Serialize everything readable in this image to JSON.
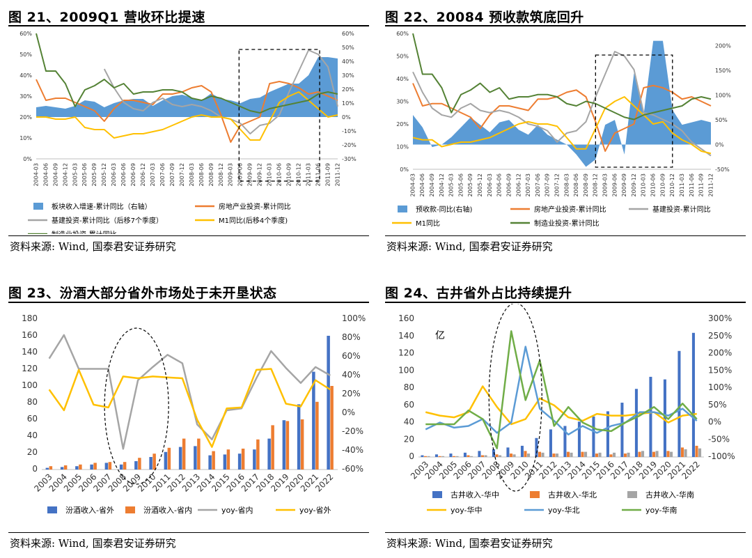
{
  "source_text": "资料来源: Wind, 国泰君安证券研究",
  "colors": {
    "blue": "#5B9BD5",
    "orange": "#ED7D31",
    "gray": "#A5A5A5",
    "yellow": "#FFC000",
    "green": "#548235",
    "darkblue": "#4472C4",
    "lightblue": "#5B9BD5",
    "green2": "#70AD47"
  },
  "chart_data": [
    {
      "id": "fig21",
      "title": "图 21、2009Q1 营收环比提速",
      "type": "area+line",
      "x": [
        "2004-03",
        "2004-06",
        "2004-09",
        "2004-12",
        "2005-03",
        "2005-06",
        "2005-09",
        "2005-12",
        "2006-03",
        "2006-06",
        "2006-09",
        "2006-12",
        "2007-03",
        "2007-06",
        "2007-09",
        "2007-12",
        "2008-03",
        "2008-06",
        "2008-09",
        "2008-12",
        "2009-03",
        "2009-06",
        "2009-09",
        "2009-12",
        "2010-03",
        "2010-06",
        "2010-09",
        "2010-12",
        "2011-03",
        "2011-06",
        "2011-09",
        "2011-12"
      ],
      "x_tick_labels": [
        "2004-03",
        "2004-06",
        "2004-09",
        "2004-12",
        "2005-03",
        "2005-06",
        "2005-09",
        "2005-12",
        "2006-03",
        "2006-06",
        "2006-09",
        "2006-12",
        "2007-03",
        "2007-06",
        "2007-09",
        "2007-12",
        "2008-03",
        "2008-06",
        "2008-09",
        "2008-12",
        "2009-03",
        "2009-06",
        "2009-09",
        "2009-12",
        "2010-03",
        "2010-06",
        "2010-09",
        "2010-12",
        "2011-03",
        "2011-06",
        "2011-09",
        "2011-12"
      ],
      "left_axis": {
        "min": 0,
        "max": 60,
        "ticks": [
          0,
          10,
          20,
          30,
          40,
          50,
          60
        ],
        "labels": [
          "0%",
          "10%",
          "20%",
          "30%",
          "40%",
          "50%",
          "60%"
        ]
      },
      "right_axis": {
        "min": -30,
        "max": 60,
        "ticks": [
          -30,
          -20,
          -10,
          0,
          10,
          20,
          30,
          40,
          50,
          60
        ],
        "labels": [
          "-30%",
          "-20%",
          "-10%",
          "0%",
          "10%",
          "20%",
          "30%",
          "40%",
          "50%",
          "60%"
        ]
      },
      "series": [
        {
          "name": "板块收入增速-累计同比（右轴）",
          "type": "area",
          "axis": "right",
          "color": "#5B9BD5",
          "values": [
            7,
            8,
            7,
            6,
            8,
            12,
            11,
            7,
            10,
            12,
            13,
            13,
            8,
            12,
            15,
            16,
            14,
            12,
            17,
            13,
            12,
            10,
            13,
            14,
            18,
            21,
            24,
            24,
            30,
            43,
            43,
            42
          ]
        },
        {
          "name": "房地产业投资-累计同比",
          "type": "line",
          "axis": "left",
          "color": "#ED7D31",
          "values": [
            38,
            28,
            29,
            29,
            27,
            25,
            23,
            18,
            24,
            28,
            28,
            27,
            26,
            31,
            31,
            32,
            34,
            35,
            32,
            21,
            8,
            16,
            18,
            20,
            36,
            37,
            36,
            34,
            31,
            32,
            30,
            28
          ]
        },
        {
          "name": "基建投资-累计同比（后移7个季度）",
          "type": "line",
          "axis": "left",
          "color": "#A5A5A5",
          "values": [
            null,
            null,
            null,
            null,
            null,
            null,
            null,
            43,
            34,
            27,
            24,
            23,
            27,
            29,
            26,
            25,
            26,
            25,
            23,
            20,
            19,
            17,
            12,
            16,
            17,
            21,
            32,
            42,
            52,
            50,
            44,
            25
          ]
        },
        {
          "name": "M1同比(后移4个季度)",
          "type": "line",
          "axis": "left",
          "color": "#FFC000",
          "values": [
            20,
            20,
            19,
            19,
            20,
            15,
            14,
            14,
            10,
            11,
            12,
            12,
            13,
            14,
            16,
            18,
            20,
            21,
            20,
            20,
            19,
            14,
            9,
            9,
            18,
            27,
            30,
            32,
            28,
            24,
            20,
            21
          ]
        },
        {
          "name": "制造业投资-累计同比",
          "type": "line",
          "axis": "left",
          "color": "#548235",
          "values": [
            60,
            42,
            42,
            36,
            25,
            33,
            35,
            38,
            34,
            36,
            31,
            32,
            32,
            33,
            33,
            32,
            29,
            28,
            30,
            29,
            27,
            25,
            23,
            22,
            24,
            25,
            26,
            27,
            28,
            31,
            32,
            31
          ]
        }
      ],
      "legend": [
        "板块收入增速-累计同比（右轴）",
        "房地产业投资-累计同比",
        "基建投资-累计同比（后移7个季度）",
        "M1同比(后移4个季度)",
        "制造业投资-累计同比"
      ],
      "annotation": "dashed rectangle 2009-03 to 2011-03"
    },
    {
      "id": "fig22",
      "title": "图 22、20084 预收款筑底回升",
      "type": "area+line",
      "x": [
        "2004-03",
        "2004-06",
        "2004-09",
        "2004-12",
        "2005-03",
        "2005-06",
        "2005-09",
        "2005-12",
        "2006-03",
        "2006-06",
        "2006-09",
        "2006-12",
        "2007-03",
        "2007-06",
        "2007-09",
        "2007-12",
        "2008-03",
        "2008-06",
        "2008-09",
        "2008-12",
        "2009-03",
        "2009-06",
        "2009-09",
        "2009-12",
        "2010-03",
        "2010-06",
        "2010-09",
        "2010-12",
        "2011-03",
        "2011-06",
        "2011-09",
        "2011-12"
      ],
      "x_tick_labels": [
        "2004-03",
        "2004-06",
        "2004-09",
        "2004-12",
        "2005-03",
        "2005-06",
        "2005-09",
        "2005-12",
        "2006-03",
        "2006-06",
        "2006-09",
        "2006-12",
        "2007-03",
        "2007-06",
        "2007-09",
        "2007-12",
        "2008-03",
        "2008-06",
        "2008-09",
        "2008-12",
        "2009-03",
        "2009-06",
        "2009-09",
        "2009-12",
        "2010-03",
        "2010-06",
        "2010-09",
        "2010-12",
        "2011-03",
        "2011-06",
        "2011-09",
        "2011-12"
      ],
      "left_axis": {
        "min": 0,
        "max": 60,
        "ticks": [
          0,
          10,
          20,
          30,
          40,
          50,
          60
        ],
        "labels": [
          "0%",
          "10%",
          "20%",
          "30%",
          "40%",
          "50%",
          "60%"
        ]
      },
      "right_axis": {
        "min": -50,
        "max": 225,
        "ticks": [
          -50,
          0,
          50,
          100,
          150,
          200
        ],
        "labels": [
          "-50%",
          "0%",
          "50%",
          "100%",
          "150%",
          "200%"
        ]
      },
      "series": [
        {
          "name": "预收款-同比(右轴)",
          "type": "area",
          "axis": "right",
          "color": "#5B9BD5",
          "values": [
            60,
            35,
            -5,
            0,
            15,
            35,
            55,
            40,
            25,
            45,
            50,
            30,
            20,
            40,
            20,
            10,
            0,
            -20,
            -45,
            -30,
            40,
            50,
            -20,
            145,
            60,
            210,
            210,
            70,
            40,
            45,
            50,
            45
          ]
        },
        {
          "name": "房地产业投资-累计同比",
          "type": "line",
          "axis": "left",
          "color": "#ED7D31",
          "values": [
            38,
            28,
            29,
            29,
            27,
            25,
            23,
            18,
            24,
            28,
            28,
            27,
            26,
            31,
            31,
            32,
            34,
            35,
            32,
            21,
            8,
            16,
            18,
            20,
            36,
            37,
            36,
            34,
            31,
            32,
            30,
            28
          ]
        },
        {
          "name": "基建投资-累计同比",
          "type": "line",
          "axis": "left",
          "color": "#A5A5A5",
          "values": [
            43,
            34,
            27,
            24,
            23,
            27,
            29,
            26,
            25,
            26,
            25,
            23,
            20,
            19,
            17,
            12,
            16,
            17,
            21,
            32,
            42,
            52,
            50,
            44,
            25,
            24,
            22,
            20,
            17,
            12,
            9,
            6
          ]
        },
        {
          "name": "M1同比",
          "type": "line",
          "axis": "left",
          "color": "#FFC000",
          "values": [
            14,
            13,
            13,
            10,
            11,
            12,
            12,
            13,
            14,
            16,
            18,
            20,
            21,
            20,
            20,
            19,
            14,
            9,
            9,
            18,
            27,
            30,
            32,
            28,
            24,
            20,
            21,
            16,
            13,
            11,
            8,
            7
          ]
        },
        {
          "name": "制造业投资-累计同比",
          "type": "line",
          "axis": "left",
          "color": "#548235",
          "values": [
            60,
            42,
            42,
            36,
            25,
            33,
            35,
            38,
            34,
            36,
            31,
            32,
            32,
            33,
            33,
            32,
            29,
            28,
            30,
            29,
            27,
            25,
            23,
            22,
            24,
            25,
            26,
            27,
            28,
            31,
            32,
            31
          ]
        }
      ],
      "legend": [
        "预收款-同比(右轴)",
        "房地产业投资-累计同比",
        "基建投资-累计同比",
        "M1同比",
        "制造业投资-累计同比"
      ],
      "annotation": "dashed rectangle 2008-12 to 2010-12"
    },
    {
      "id": "fig23",
      "title": "图 23、汾酒大部分省外市场处于未开垦状态",
      "type": "bar+line",
      "categories": [
        "2003",
        "2004",
        "2005",
        "2006",
        "2007",
        "2008",
        "2009",
        "2010",
        "2011",
        "2012",
        "2013",
        "2014",
        "2015",
        "2016",
        "2017",
        "2018",
        "2019",
        "2020",
        "2021",
        "2022"
      ],
      "left_axis": {
        "min": 0,
        "max": 180,
        "ticks": [
          0,
          20,
          40,
          60,
          80,
          100,
          120,
          140,
          160,
          180
        ],
        "labels": [
          "0",
          "20",
          "40",
          "60",
          "80",
          "100",
          "120",
          "140",
          "160",
          "180"
        ]
      },
      "right_axis": {
        "min": -60,
        "max": 100,
        "ticks": [
          -60,
          -40,
          -20,
          0,
          20,
          40,
          60,
          80,
          100
        ],
        "labels": [
          "-60%",
          "-40%",
          "-20%",
          "0%",
          "20%",
          "40%",
          "60%",
          "80%",
          "100%"
        ]
      },
      "series": [
        {
          "name": "汾酒收入-省外",
          "type": "bar",
          "axis": "left",
          "color": "#4472C4",
          "values": [
            2,
            3,
            4,
            6,
            8,
            6,
            10,
            15,
            21,
            27,
            28,
            17,
            18,
            19,
            24,
            37,
            59,
            78,
            117,
            160
          ]
        },
        {
          "name": "汾酒收入-省内",
          "type": "bar",
          "axis": "left",
          "color": "#ED7D31",
          "values": [
            4,
            5,
            6,
            8,
            9,
            9,
            14,
            19,
            26,
            37,
            37,
            22,
            24,
            25,
            36,
            53,
            58,
            60,
            81,
            100
          ]
        },
        {
          "name": "yoy-省内",
          "type": "line",
          "axis": "right",
          "color": "#A5A5A5",
          "values": [
            58,
            83,
            47,
            47,
            47,
            -38,
            35,
            49,
            62,
            53,
            -12,
            -28,
            3,
            5,
            37,
            66,
            48,
            32,
            49,
            40
          ]
        },
        {
          "name": "yoy-省外",
          "type": "line",
          "axis": "right",
          "color": "#FFC000",
          "values": [
            25,
            3,
            46,
            9,
            6,
            39,
            37,
            39,
            38,
            37,
            -7,
            -36,
            5,
            6,
            46,
            47,
            10,
            7,
            35,
            25
          ]
        }
      ],
      "legend": [
        "汾酒收入-省外",
        "汾酒收入-省内",
        "yoy-省内",
        "yoy-省外"
      ],
      "annotation": "dashed ellipse around 2007-2009"
    },
    {
      "id": "fig24",
      "title": "图 24、古井省外占比持续提升",
      "type": "bar+line",
      "unit_label": "亿",
      "categories": [
        "2003",
        "2004",
        "2005",
        "2006",
        "2007",
        "2008",
        "2009",
        "2010",
        "2011",
        "2012",
        "2013",
        "2014",
        "2015",
        "2016",
        "2017",
        "2018",
        "2019",
        "2020",
        "2021",
        "2022"
      ],
      "left_axis": {
        "min": 0,
        "max": 160,
        "ticks": [
          0,
          20,
          40,
          60,
          80,
          100,
          120,
          140,
          160
        ],
        "labels": [
          "0",
          "20",
          "40",
          "60",
          "80",
          "100",
          "120",
          "140",
          "160"
        ]
      },
      "right_axis": {
        "min": -100,
        "max": 300,
        "ticks": [
          -100,
          -50,
          0,
          50,
          100,
          150,
          200,
          250,
          300
        ],
        "labels": [
          "-100%",
          "-50%",
          "0%",
          "50%",
          "100%",
          "150%",
          "200%",
          "250%",
          "300%"
        ]
      },
      "series": [
        {
          "name": "古井收入-华中",
          "type": "bar",
          "axis": "left",
          "color": "#4472C4",
          "values": [
            2,
            3,
            4,
            5,
            7,
            9,
            11,
            13,
            22,
            32,
            36,
            41,
            47,
            53,
            63,
            79,
            93,
            90,
            123,
            144
          ]
        },
        {
          "name": "古井收入-华北",
          "type": "bar",
          "axis": "left",
          "color": "#ED7D31",
          "values": [
            1,
            1,
            1,
            2,
            2,
            3,
            4,
            7,
            6,
            4,
            6,
            6,
            4,
            3,
            4,
            6,
            6,
            7,
            11,
            13
          ]
        },
        {
          "name": "古井收入-华南",
          "type": "bar",
          "axis": "left",
          "color": "#A5A5A5",
          "values": [
            1,
            1,
            1,
            1,
            2,
            2,
            3,
            4,
            5,
            4,
            5,
            6,
            5,
            5,
            5,
            7,
            7,
            6,
            9,
            10
          ]
        },
        {
          "name": "yoy-华中",
          "type": "line",
          "axis": "right",
          "color": "#FFC000",
          "values": [
            30,
            20,
            15,
            30,
            105,
            45,
            -5,
            10,
            70,
            50,
            15,
            5,
            25,
            20,
            20,
            25,
            30,
            0,
            20,
            25
          ]
        },
        {
          "name": "yoy-华北",
          "type": "line",
          "axis": "right",
          "color": "#5B9BD5",
          "values": [
            -20,
            0,
            -15,
            -10,
            10,
            -30,
            0,
            220,
            40,
            5,
            -35,
            -10,
            -30,
            -10,
            0,
            30,
            30,
            20,
            40,
            5
          ]
        },
        {
          "name": "yoy-华南",
          "type": "line",
          "axis": "right",
          "color": "#70AD47",
          "values": [
            -5,
            -5,
            -5,
            35,
            10,
            -75,
            265,
            65,
            180,
            -10,
            45,
            0,
            -20,
            -25,
            0,
            20,
            45,
            10,
            55,
            10
          ]
        }
      ],
      "legend": [
        "古井收入-华中",
        "古井收入-华北",
        "古井收入-华南",
        "yoy-华中",
        "yoy-华北",
        "yoy-华南"
      ],
      "annotation": "dashed ellipse around 2007-2010"
    }
  ]
}
